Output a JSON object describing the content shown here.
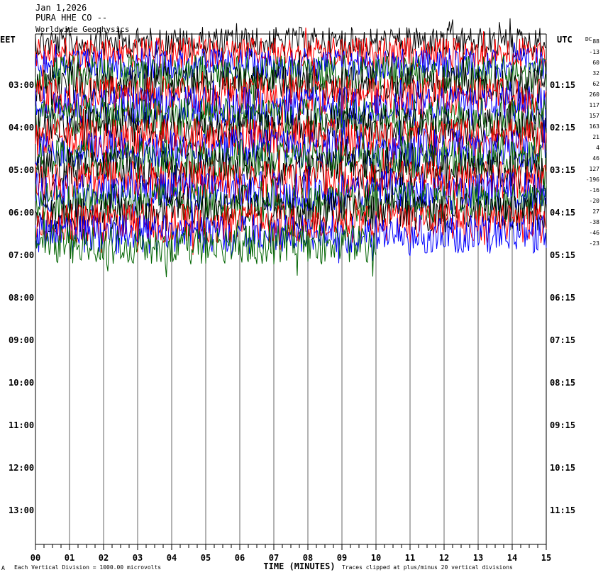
{
  "header": {
    "date": "Jan 1,2026",
    "station": "PURA HHE CO --",
    "extra": "Worldwide Geophysics"
  },
  "chart_data": {
    "type": "line",
    "title": "",
    "xlabel": "TIME (MINUTES)",
    "left_axis_label": "EET",
    "right_axis_label": "UTC",
    "xlim": [
      0,
      15
    ],
    "x_ticks": [
      "00",
      "01",
      "02",
      "03",
      "04",
      "05",
      "06",
      "07",
      "08",
      "09",
      "10",
      "11",
      "12",
      "13",
      "14",
      "15"
    ],
    "left_ticks": [
      "03:00",
      "04:00",
      "05:00",
      "06:00",
      "07:00",
      "08:00",
      "09:00",
      "10:00",
      "11:00",
      "12:00",
      "13:00"
    ],
    "right_ticks": [
      "01:15",
      "02:15",
      "03:15",
      "04:15",
      "05:15",
      "06:15",
      "07:15",
      "08:15",
      "09:15",
      "10:15",
      "11:15"
    ],
    "dc_header": "DC",
    "dc_values": [
      "88",
      "-13",
      "60",
      "32",
      "62",
      "260",
      "117",
      "157",
      "163",
      "21",
      "4",
      "46",
      "127",
      "-196",
      "-16",
      "-20",
      "27",
      "-38",
      "-46",
      "-23"
    ],
    "trace_colors": [
      "#000000",
      "#ff0000",
      "#0000ff",
      "#006400"
    ],
    "traces_recorded": 20,
    "last_trace_end_minute": 10,
    "footer_left": "Each Vertical Division = 1000.00 microvolts",
    "footer_right": "Traces clipped at plus/minus 20 vertical divisions",
    "footer_mark": "A"
  }
}
